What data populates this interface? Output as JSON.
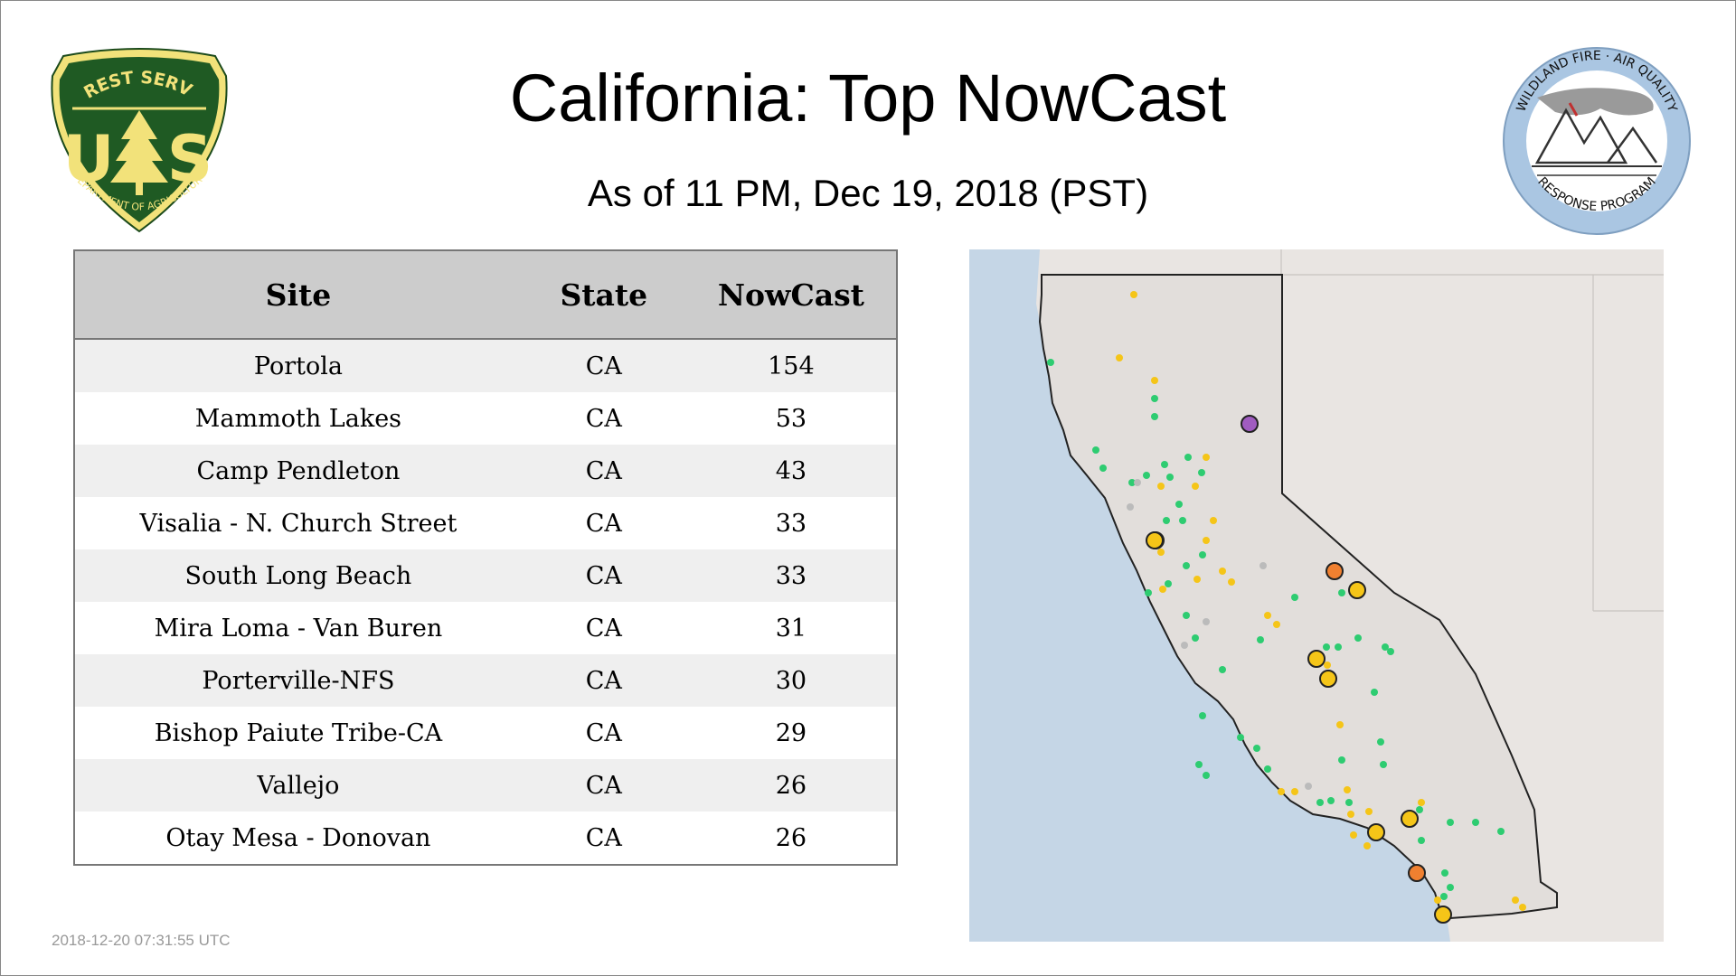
{
  "title": "California: Top NowCast",
  "subtitle": "As of 11 PM, Dec 19, 2018 (PST)",
  "logos": {
    "left": {
      "icon": "forest-service-shield-icon",
      "top_text": "FOREST SERVICE",
      "letters_left": "U",
      "letters_right": "S",
      "bottom_text": "DEPARTMENT OF AGRICULTURE"
    },
    "right": {
      "icon": "wildland-fire-air-quality-icon",
      "top_text": "WILDLAND FIRE · AIR QUALITY",
      "bottom_text": "RESPONSE PROGRAM"
    }
  },
  "table": {
    "headers": {
      "site": "Site",
      "state": "State",
      "nowcast": "NowCast"
    },
    "rows": [
      {
        "site": "Portola",
        "state": "CA",
        "nowcast": "154"
      },
      {
        "site": "Mammoth Lakes",
        "state": "CA",
        "nowcast": "53"
      },
      {
        "site": "Camp Pendleton",
        "state": "CA",
        "nowcast": "43"
      },
      {
        "site": "Visalia - N. Church Street",
        "state": "CA",
        "nowcast": "33"
      },
      {
        "site": "South Long Beach",
        "state": "CA",
        "nowcast": "33"
      },
      {
        "site": "Mira Loma - Van Buren",
        "state": "CA",
        "nowcast": "31"
      },
      {
        "site": "Porterville-NFS",
        "state": "CA",
        "nowcast": "30"
      },
      {
        "site": "Bishop Paiute Tribe-CA",
        "state": "CA",
        "nowcast": "29"
      },
      {
        "site": "Vallejo",
        "state": "CA",
        "nowcast": "26"
      },
      {
        "site": "Otay Mesa - Donovan",
        "state": "CA",
        "nowcast": "26"
      }
    ]
  },
  "map": {
    "icon": "california-map-icon",
    "colors": {
      "ocean": "#c5d6e6",
      "land": "#e9e5e2",
      "good": "#2ecc71",
      "moderate": "#f5c518",
      "usg": "#f08030",
      "unhealthy": "#a05cc0",
      "no_data": "#bbbbbb"
    }
  },
  "timestamp": "2018-12-20 07:31:55 UTC"
}
